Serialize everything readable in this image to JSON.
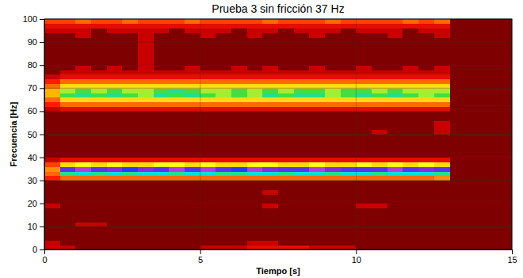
{
  "chart_data": {
    "type": "heatmap",
    "title": "Prueba 3 sin fricción 37 Hz",
    "x_label": "Tiempo [s]",
    "y_label": "Frecuencia [Hz]",
    "xlim": [
      0,
      15
    ],
    "xticks": [
      0,
      5,
      10,
      15
    ],
    "ylim": [
      0,
      100
    ],
    "yticks": [
      0,
      10,
      20,
      30,
      40,
      50,
      60,
      70,
      80,
      90,
      100
    ],
    "grid": true,
    "zlim": [
      0,
      10
    ],
    "colors": [
      "#7f0000",
      "#c80000",
      "#ff1a00",
      "#ff6a00",
      "#ffb400",
      "#ffff20",
      "#3fe03f",
      "#00dede",
      "#2a3cff",
      "#8a2be2",
      "#e050e0"
    ],
    "x_bins": [
      0,
      0.5,
      1,
      1.5,
      2,
      2.5,
      3,
      3.5,
      4,
      4.5,
      5,
      5.5,
      6,
      6.5,
      7,
      7.5,
      8,
      8.5,
      9,
      9.5,
      10,
      10.5,
      11,
      11.5,
      12,
      12.5,
      13
    ],
    "y_bins": [
      0,
      2,
      4,
      6,
      8,
      10,
      12,
      14,
      16,
      18,
      20,
      22,
      24,
      26,
      28,
      30,
      32,
      34,
      36,
      38,
      40,
      42,
      44,
      46,
      48,
      50,
      52,
      54,
      56,
      58,
      60,
      62,
      64,
      66,
      68,
      70,
      72,
      74,
      76,
      78,
      80,
      82,
      84,
      86,
      88,
      90,
      92,
      94,
      96,
      98,
      100
    ],
    "values": [
      [
        1,
        1,
        0,
        0,
        0,
        0,
        0,
        0,
        0,
        0,
        1,
        1,
        1,
        1.5,
        1.5,
        1.5,
        1.5,
        1,
        1,
        1,
        0,
        0,
        0,
        0,
        0,
        0
      ],
      [
        1,
        0,
        0,
        0,
        0,
        0,
        0,
        0,
        0,
        0,
        0,
        0,
        0,
        1,
        1,
        0,
        0,
        0,
        0,
        0,
        0,
        0,
        0,
        0,
        0,
        0
      ],
      [
        0,
        0,
        0,
        0,
        0,
        0,
        0,
        0,
        0,
        0,
        0,
        0,
        0,
        0,
        0,
        0,
        0,
        0,
        0,
        0,
        0,
        0,
        0,
        0,
        0,
        0
      ],
      [
        0,
        0,
        0,
        0,
        0,
        0,
        0,
        0,
        0,
        0,
        0,
        0,
        0,
        0,
        0,
        0,
        0,
        0,
        0,
        0,
        0,
        0,
        0,
        0,
        0,
        0
      ],
      [
        0,
        0,
        0,
        0,
        0,
        0,
        0,
        0,
        0,
        0,
        0,
        0,
        0,
        0,
        0,
        0,
        0,
        0,
        0,
        0,
        0,
        0,
        0,
        0,
        0,
        0
      ],
      [
        0,
        0,
        1,
        1,
        0,
        0,
        0,
        0,
        0,
        0,
        0,
        0,
        0,
        0,
        0,
        0,
        0,
        0,
        0,
        0,
        0,
        0,
        0,
        0,
        0,
        0
      ],
      [
        0,
        0,
        0,
        0,
        0,
        0,
        0,
        0,
        0,
        0,
        0,
        0,
        0,
        0,
        0,
        0,
        0,
        0,
        0,
        0,
        0,
        0,
        0,
        0,
        0,
        0
      ],
      [
        0,
        0,
        0,
        0,
        0,
        0,
        0,
        0,
        0,
        0,
        0,
        0,
        0,
        0,
        0,
        0,
        0,
        0,
        0,
        0,
        0,
        0,
        0,
        0,
        0,
        0
      ],
      [
        0,
        0,
        0,
        0,
        0,
        0,
        0,
        0,
        0,
        0,
        0,
        0,
        0,
        0,
        0,
        0,
        0,
        0,
        0,
        0,
        0,
        0,
        0,
        0,
        0,
        0
      ],
      [
        1,
        0,
        0,
        0,
        0,
        0,
        0,
        0,
        0,
        0,
        0,
        0,
        0,
        0,
        1,
        0,
        0,
        0,
        0,
        0,
        1,
        1,
        0,
        0,
        0,
        0
      ],
      [
        0,
        0,
        0,
        0,
        0,
        0,
        0,
        0,
        0,
        0,
        0,
        0,
        0,
        0,
        0,
        0,
        0,
        0,
        0,
        0,
        0,
        0,
        0,
        0,
        0,
        0
      ],
      [
        0,
        0,
        0,
        0,
        0,
        0,
        0,
        0,
        0,
        0,
        0,
        0,
        0,
        0,
        0,
        0,
        0,
        0,
        0,
        0,
        0,
        0,
        0,
        0,
        0,
        0
      ],
      [
        0,
        0,
        0,
        0,
        0,
        0,
        0,
        0,
        0,
        0,
        0,
        0,
        0,
        0,
        1,
        0,
        0,
        0,
        0,
        0,
        0,
        0,
        0,
        0,
        0,
        0
      ],
      [
        0,
        0,
        0,
        0,
        0,
        0,
        0,
        0,
        0,
        0,
        0,
        0,
        0,
        0,
        0,
        0,
        0,
        0,
        0,
        0,
        0,
        0,
        0,
        0,
        0,
        0
      ],
      [
        0,
        0,
        0,
        0,
        0,
        0,
        0,
        0,
        0,
        0,
        0,
        0,
        0,
        0,
        0,
        0,
        0,
        0,
        0,
        0,
        0,
        0,
        0,
        0,
        0,
        0
      ],
      [
        2,
        3,
        3,
        3,
        3,
        3,
        3,
        3,
        3,
        3,
        3,
        3,
        3,
        3,
        3,
        3,
        3,
        3,
        3,
        3,
        3,
        3,
        3,
        3,
        3,
        3.5
      ],
      [
        3,
        6.5,
        7,
        6.5,
        7,
        6.5,
        7,
        7,
        6.5,
        7,
        7,
        6.5,
        6.5,
        7,
        7,
        6.5,
        7,
        7,
        6.5,
        7,
        7,
        6.5,
        7,
        7,
        7,
        6.5
      ],
      [
        3.5,
        8.5,
        9.5,
        8.5,
        9,
        8,
        9,
        8.5,
        9.5,
        8.5,
        9.5,
        8.5,
        8,
        9.5,
        9,
        8.5,
        8.5,
        9.5,
        9,
        8.5,
        8.5,
        8.5,
        9.5,
        8.5,
        9,
        8.5
      ],
      [
        2.5,
        4.5,
        5,
        4.5,
        5,
        4.5,
        4.5,
        5,
        5,
        4.5,
        5,
        4.5,
        4.5,
        5,
        5,
        4.5,
        4.5,
        5,
        4.5,
        4.5,
        5,
        4.5,
        5,
        4.5,
        5,
        4.5
      ],
      [
        1,
        1.5,
        1.5,
        1.5,
        1.5,
        1.5,
        1.5,
        1.5,
        1.5,
        1.5,
        1.5,
        1.5,
        1.5,
        1.5,
        1.5,
        1.5,
        1.5,
        1.5,
        1.5,
        1.5,
        1.5,
        1.5,
        1.5,
        1.5,
        1.5,
        1.5
      ],
      [
        0,
        0,
        0,
        0,
        0,
        0,
        0,
        0,
        0,
        0,
        0,
        0,
        0,
        0,
        0,
        0,
        0,
        0,
        0,
        0,
        0,
        0,
        0,
        0,
        0,
        0
      ],
      [
        0,
        0,
        0,
        0,
        0,
        0,
        0,
        0,
        0,
        0,
        0,
        0,
        0,
        0,
        0,
        0,
        0,
        0,
        0,
        0,
        0,
        0,
        0,
        0,
        0,
        0
      ],
      [
        0,
        0,
        0,
        0,
        0,
        0,
        0,
        0,
        0,
        0,
        0,
        0,
        0,
        0,
        0,
        0,
        0,
        0,
        0,
        0,
        0,
        0,
        0,
        0,
        0,
        0
      ],
      [
        0,
        0,
        0,
        0,
        0,
        0,
        0,
        0,
        0,
        0,
        0,
        0,
        0,
        0,
        0,
        0,
        0,
        0,
        0,
        0,
        0,
        0,
        0,
        0,
        0,
        0
      ],
      [
        0,
        0,
        0,
        0,
        0,
        0,
        0,
        0,
        0,
        0,
        0,
        0,
        0,
        0,
        0,
        0,
        0,
        0,
        0,
        0,
        0,
        0,
        0,
        0,
        0,
        0
      ],
      [
        0,
        0,
        0,
        0,
        0,
        0,
        0,
        0,
        0,
        0,
        0,
        0,
        0,
        0,
        0,
        0,
        0,
        0,
        0,
        0,
        0,
        1,
        0,
        0,
        0,
        1
      ],
      [
        0,
        0,
        0,
        0,
        0,
        0,
        0,
        0,
        0,
        0,
        0,
        0,
        0,
        0,
        0,
        0,
        0,
        0,
        0,
        0,
        0,
        0,
        0,
        0,
        0,
        1
      ],
      [
        0,
        0,
        0,
        0,
        0,
        0,
        0,
        0,
        0,
        0,
        0,
        0,
        0,
        0,
        0,
        0,
        0,
        0,
        0,
        0,
        0,
        0,
        0,
        0,
        0,
        1
      ],
      [
        0,
        0,
        0,
        0,
        0,
        0,
        0,
        0,
        0,
        0,
        0,
        0,
        0,
        0,
        0,
        0,
        0,
        0,
        0,
        0,
        0,
        0,
        0,
        0,
        0,
        0
      ],
      [
        0,
        0,
        0,
        0,
        0,
        0,
        0,
        0,
        0,
        0,
        0,
        0,
        0,
        0,
        0,
        0,
        0,
        0,
        0,
        0,
        0,
        0,
        0,
        0,
        0,
        0
      ],
      [
        1,
        1.5,
        1.5,
        1.5,
        1.5,
        1.5,
        1.5,
        1.5,
        1.5,
        1.5,
        1.5,
        1.5,
        1.5,
        1.5,
        1.5,
        1.5,
        1.5,
        1.5,
        1.5,
        1.5,
        1.5,
        1.5,
        1.5,
        1.5,
        1.5,
        1.5
      ],
      [
        2,
        3,
        3,
        3,
        3,
        3,
        3,
        3,
        3,
        3,
        3,
        3,
        3,
        3,
        3,
        3,
        3,
        3,
        3,
        3,
        3,
        3,
        3,
        3,
        3,
        3
      ],
      [
        3,
        4.5,
        4.5,
        4.5,
        4.5,
        4.5,
        4.5,
        4.5,
        4.5,
        4.5,
        4.5,
        4.5,
        4.5,
        4.5,
        4.5,
        4.5,
        4.5,
        4.5,
        4.5,
        4.5,
        4.5,
        4.5,
        4.5,
        4.5,
        4.5,
        4.5
      ],
      [
        4,
        6,
        6.5,
        6,
        6.5,
        6,
        5.5,
        6.5,
        6,
        6.5,
        6,
        5.5,
        6,
        5.5,
        6.5,
        6,
        6.5,
        6.5,
        5.5,
        6,
        6.5,
        6,
        6.5,
        6,
        5.5,
        6
      ],
      [
        4,
        5.5,
        6,
        5.5,
        6,
        5.5,
        5.5,
        6,
        6.5,
        6,
        5.5,
        5.5,
        6,
        5.5,
        6,
        5.5,
        6,
        6,
        5.5,
        6,
        6,
        5.5,
        6,
        5.5,
        5.5,
        5.5
      ],
      [
        3,
        4.5,
        4.5,
        4.5,
        4.5,
        4.5,
        4.5,
        4.5,
        4.5,
        4.5,
        4.5,
        4.5,
        4.5,
        4.5,
        4.5,
        4.5,
        4.5,
        4.5,
        4.5,
        4.5,
        4.5,
        4.5,
        4.5,
        4.5,
        4.5,
        4.5
      ],
      [
        2,
        3,
        3,
        3,
        3,
        3,
        3,
        3,
        3,
        3,
        3,
        3,
        3,
        3,
        3,
        3,
        3,
        3,
        3,
        3,
        3,
        3,
        3,
        3,
        3,
        3
      ],
      [
        1,
        1.5,
        1.5,
        1.5,
        1.5,
        1.5,
        1.5,
        1.5,
        1.5,
        1.5,
        1.5,
        1.5,
        1.5,
        1.5,
        1.5,
        1.5,
        1.5,
        1.5,
        1.5,
        1.5,
        1.5,
        1.5,
        1.5,
        1.5,
        1.5,
        1.5
      ],
      [
        0,
        1,
        1,
        1,
        1,
        1,
        1,
        1,
        1,
        1,
        1,
        1,
        1,
        1,
        1,
        1,
        1,
        1,
        1,
        1,
        1,
        1,
        1,
        1,
        1,
        1
      ],
      [
        0,
        0,
        1,
        0,
        1,
        0,
        1,
        0,
        0,
        1,
        0,
        0,
        1,
        0,
        1,
        0,
        0,
        1,
        0,
        0,
        1,
        0,
        0,
        1,
        0,
        1
      ],
      [
        0,
        0,
        0,
        0,
        0,
        0,
        1,
        0,
        0,
        0,
        0,
        0,
        0,
        0,
        0,
        0,
        0,
        0,
        0,
        0,
        0,
        0,
        0,
        0,
        0,
        0
      ],
      [
        0,
        0,
        0,
        0,
        0,
        0,
        1,
        0,
        0,
        0,
        0,
        0,
        0,
        0,
        0,
        0,
        0,
        0,
        0,
        0,
        0,
        0,
        0,
        0,
        0,
        0
      ],
      [
        0,
        0,
        0,
        0,
        0,
        0,
        1,
        0,
        0,
        0,
        0,
        0,
        0,
        0,
        0,
        0,
        0,
        0,
        0,
        0,
        0,
        0,
        0,
        0,
        0,
        0
      ],
      [
        0,
        0,
        0,
        0,
        0,
        0,
        1,
        0,
        0,
        0,
        0,
        0,
        0,
        0,
        0,
        0,
        0,
        0,
        0,
        0,
        0,
        0,
        0,
        0,
        0,
        0
      ],
      [
        0,
        0,
        0,
        0,
        0,
        0,
        1,
        0,
        0,
        0,
        0,
        0,
        0,
        0,
        0,
        0,
        0,
        0,
        0,
        0,
        0,
        0,
        0,
        0,
        0,
        0
      ],
      [
        0,
        0,
        0,
        0,
        0,
        0,
        1,
        0,
        0,
        0,
        0,
        0,
        0,
        0,
        0,
        0,
        0,
        0,
        0,
        0,
        0,
        0,
        0,
        0,
        0,
        0
      ],
      [
        0,
        0,
        1,
        0,
        0,
        0,
        1,
        0,
        0,
        0,
        1,
        0,
        0,
        1,
        0,
        0,
        0,
        1,
        0,
        0,
        0,
        0,
        1,
        0,
        0,
        1
      ],
      [
        1,
        1,
        1,
        0,
        1,
        1,
        1,
        1,
        0,
        1,
        1,
        1,
        0,
        1,
        1,
        0,
        1,
        1,
        1,
        0,
        1,
        1,
        1,
        0,
        1,
        1
      ],
      [
        1.5,
        1.5,
        1.5,
        1.5,
        1.5,
        1.5,
        1.5,
        1.5,
        1.5,
        1.5,
        1.5,
        1.5,
        1.5,
        1.5,
        1.5,
        1.5,
        1.5,
        1.5,
        1.5,
        1.5,
        1.5,
        1.5,
        1.5,
        1.5,
        1.5,
        1.5
      ],
      [
        2.5,
        2.5,
        3,
        2.5,
        2.5,
        3,
        2.5,
        2.5,
        2.5,
        3,
        2.5,
        2.5,
        2.5,
        2.5,
        3,
        2.5,
        2.5,
        2.5,
        3,
        2.5,
        2.5,
        2.5,
        2.5,
        3,
        2.5,
        3
      ]
    ]
  }
}
